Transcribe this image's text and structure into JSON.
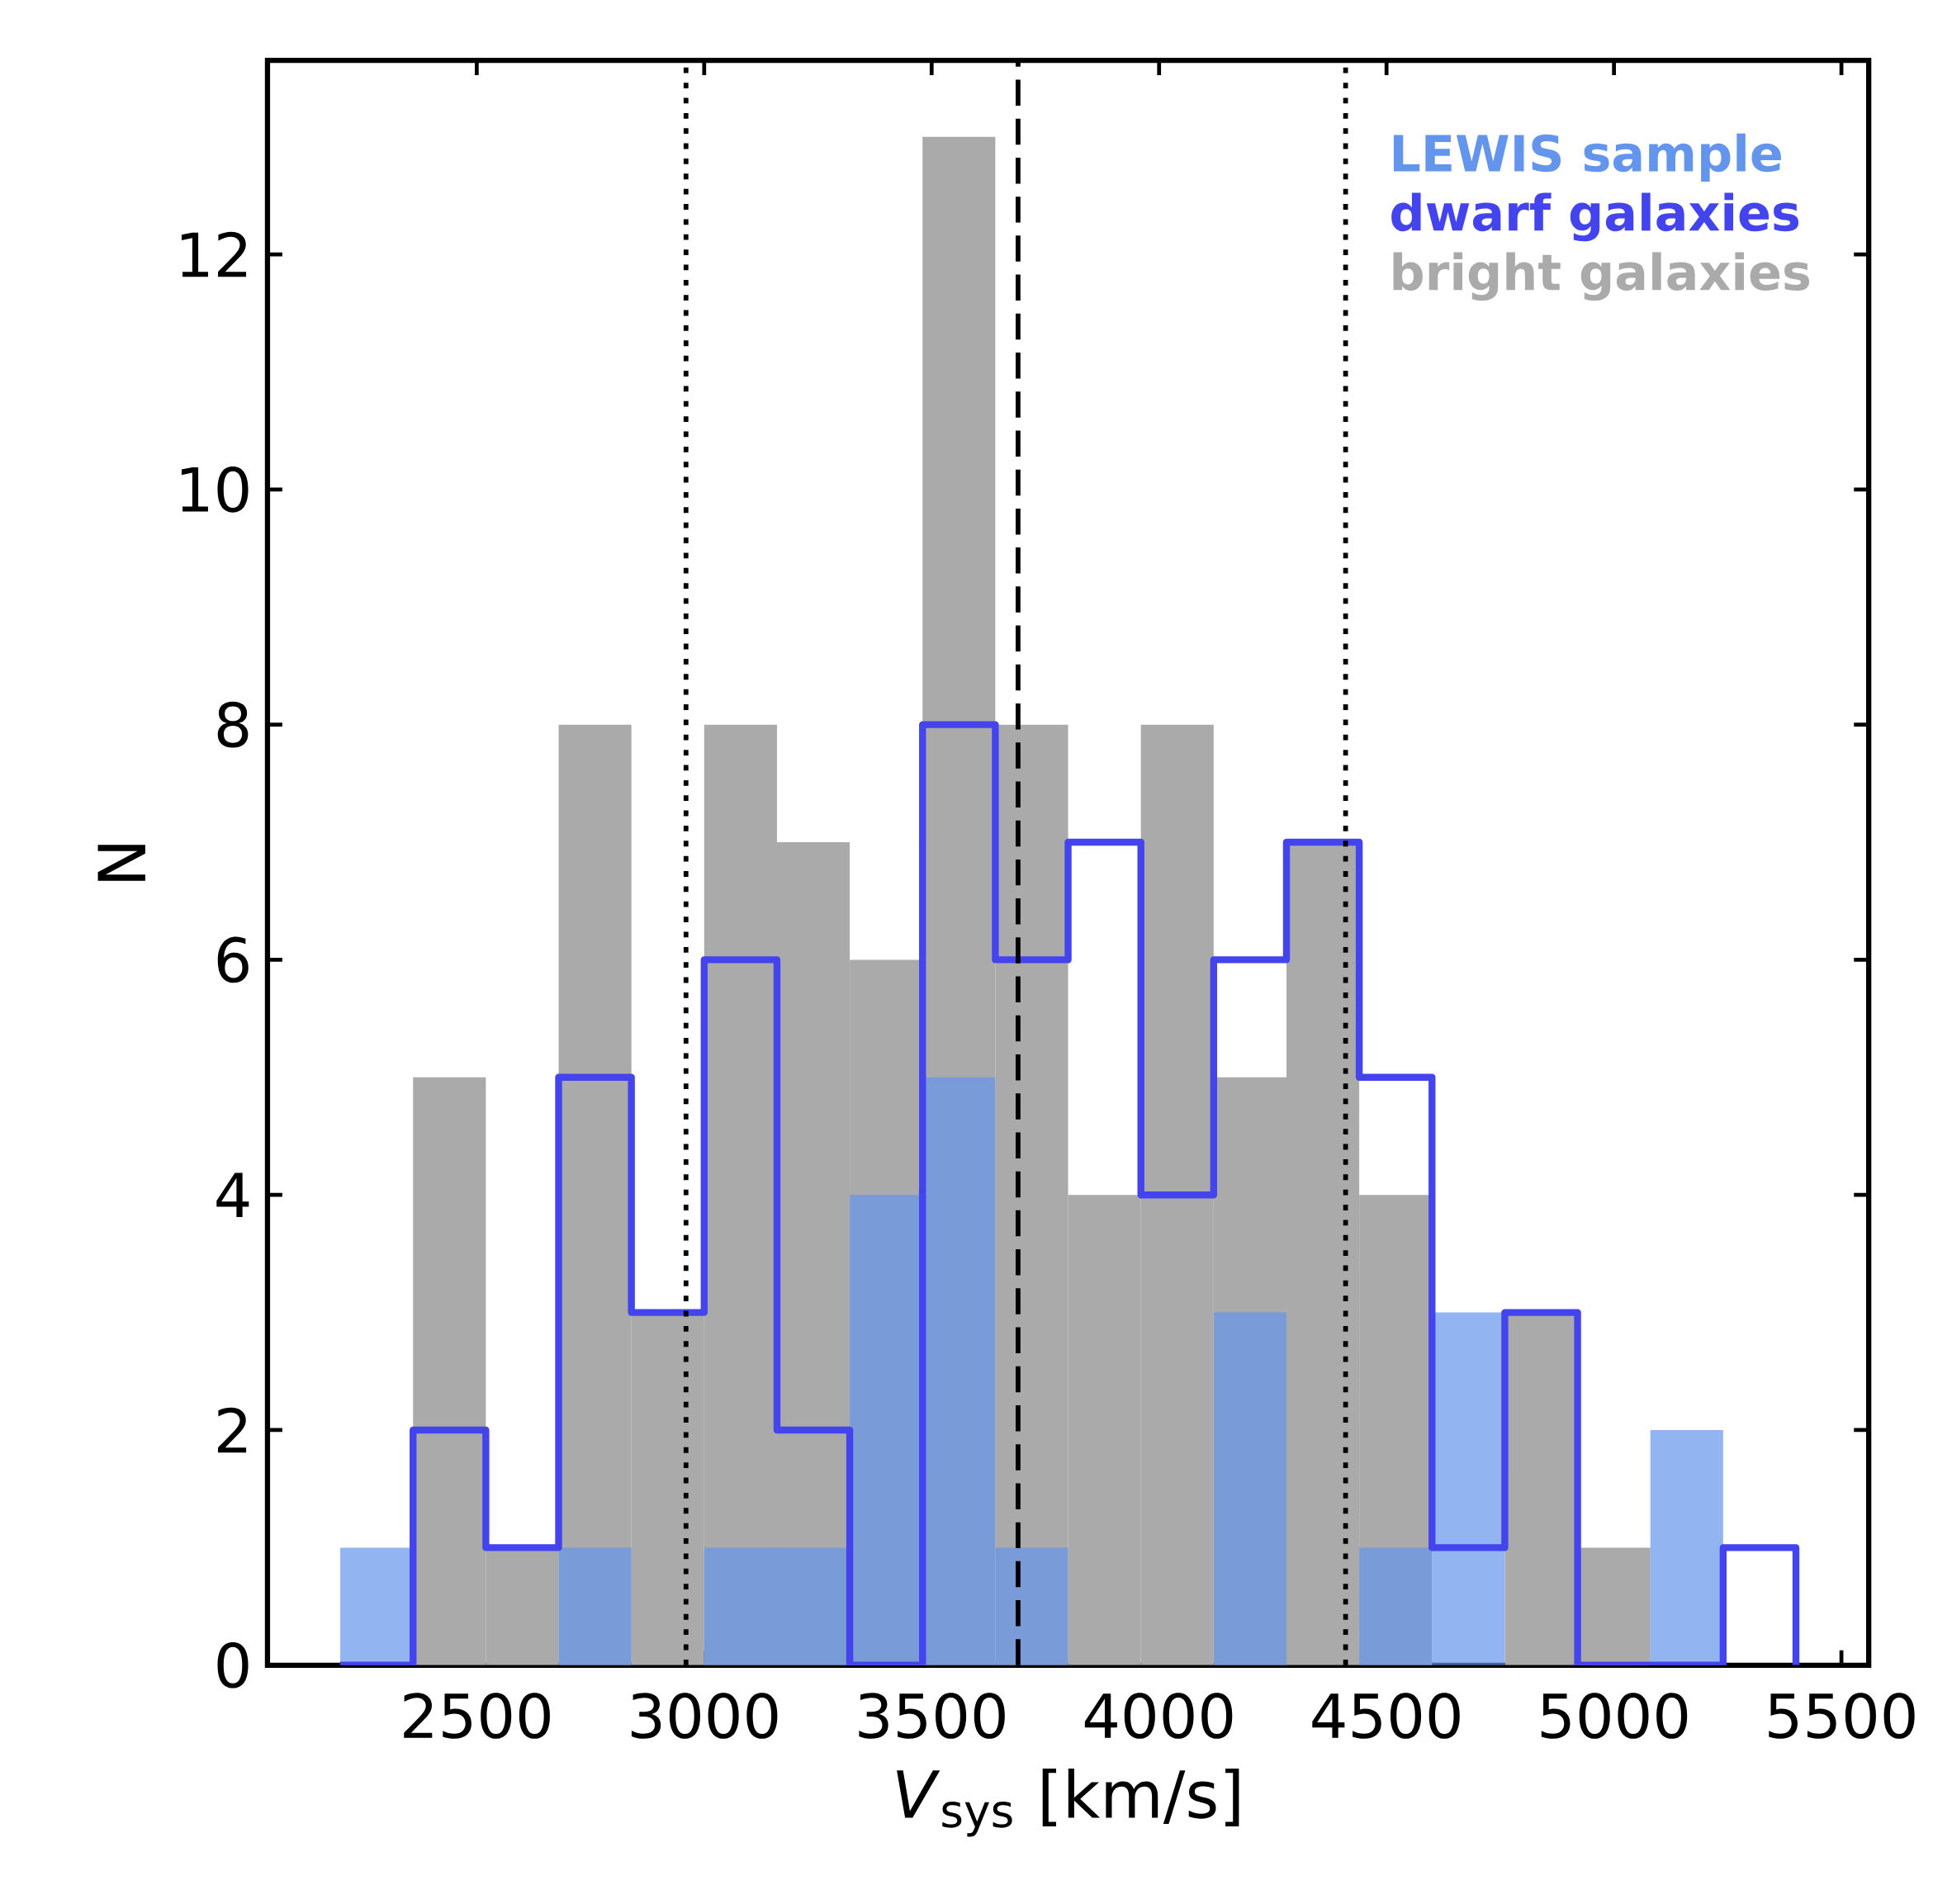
{
  "chart_data": {
    "type": "histogram",
    "xlabel": "*V*$_{sys}$ [km/s]",
    "ylabel": "N",
    "bins": [
      2200,
      2360,
      2520,
      2680,
      2840,
      3000,
      3160,
      3320,
      3480,
      3640,
      3800,
      3960,
      4120,
      4280,
      4440,
      4600,
      4760,
      4920,
      5080,
      5240,
      5400
    ],
    "series": [
      {
        "name": "LEWIS sample",
        "color": "#6495ed",
        "values": [
          1,
          0,
          0,
          1,
          0,
          1,
          1,
          4,
          5,
          1,
          0,
          0,
          3,
          0,
          1,
          3,
          0,
          0,
          2,
          0
        ]
      },
      {
        "name": "dwarf galaxies",
        "type": "step",
        "color": "#4444ee",
        "x": [
          2200,
          2360,
          2520,
          2680,
          2840,
          3000,
          3160,
          3320,
          3480,
          3640,
          3800,
          3960,
          4120,
          4280,
          4440,
          4600,
          4760,
          4920,
          5080,
          5240,
          5400
        ],
        "values": [
          0,
          2,
          1,
          5,
          3,
          6,
          2,
          0,
          8,
          6,
          7,
          4,
          6,
          7,
          5,
          1,
          3,
          0,
          0,
          1,
          0
        ]
      },
      {
        "name": "bright galaxies",
        "color": "#aaaaaa",
        "values": [
          null,
          5,
          1,
          8,
          3,
          8,
          7,
          6,
          13,
          8,
          4,
          8,
          5,
          7,
          4,
          null,
          3,
          1,
          0,
          0
        ]
      }
    ],
    "ref_lines": [
      {
        "axis": "x",
        "value": 2960,
        "line_style": "dotted",
        "color": "#000000"
      },
      {
        "axis": "x",
        "value": 3690,
        "line_style": "dashed",
        "color": "#000000"
      },
      {
        "axis": "x",
        "value": 4410,
        "line_style": "dotted",
        "color": "#000000"
      }
    ],
    "xlim": [
      2040,
      5560
    ],
    "ylim": [
      0,
      13.65
    ],
    "xticks": [
      2500,
      3000,
      3500,
      4000,
      4500,
      5000,
      5500
    ],
    "yticks": [
      0,
      2,
      4,
      6,
      8,
      10,
      12
    ],
    "legend": "top right",
    "grid": false
  }
}
